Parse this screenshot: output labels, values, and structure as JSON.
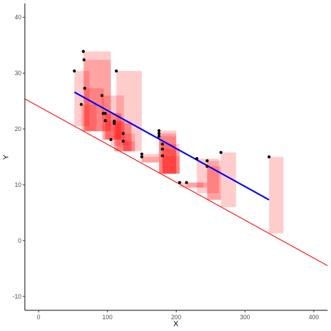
{
  "chart_data": {
    "type": "scatter",
    "xlabel": "X",
    "ylabel": "Y",
    "xlim": [
      -20,
      420
    ],
    "ylim": [
      -12.5,
      42.5
    ],
    "x_ticks": [
      0,
      100,
      200,
      300,
      400
    ],
    "y_ticks": [
      -10,
      0,
      10,
      20,
      30,
      40
    ],
    "x_tick_labels": [
      "0",
      "100",
      "200",
      "300",
      "400"
    ],
    "y_tick_labels": [
      "-10",
      "0",
      "10",
      "20",
      "30",
      "40"
    ],
    "grid": false,
    "points": [
      {
        "x": 52,
        "y": 30.4
      },
      {
        "x": 62,
        "y": 24.4
      },
      {
        "x": 65,
        "y": 33.9
      },
      {
        "x": 66,
        "y": 32.4
      },
      {
        "x": 67,
        "y": 27.3
      },
      {
        "x": 92,
        "y": 26.0
      },
      {
        "x": 94,
        "y": 22.8
      },
      {
        "x": 97,
        "y": 21.5
      },
      {
        "x": 97,
        "y": 22.8
      },
      {
        "x": 105,
        "y": 18.1
      },
      {
        "x": 110,
        "y": 21.4
      },
      {
        "x": 110,
        "y": 21.0
      },
      {
        "x": 113,
        "y": 30.4
      },
      {
        "x": 123,
        "y": 19.2
      },
      {
        "x": 123,
        "y": 17.8
      },
      {
        "x": 150,
        "y": 15.5
      },
      {
        "x": 150,
        "y": 15.0
      },
      {
        "x": 175,
        "y": 19.7
      },
      {
        "x": 175,
        "y": 19.2
      },
      {
        "x": 175,
        "y": 18.7
      },
      {
        "x": 180,
        "y": 17.3
      },
      {
        "x": 180,
        "y": 16.4
      },
      {
        "x": 180,
        "y": 15.2
      },
      {
        "x": 205,
        "y": 10.4
      },
      {
        "x": 215,
        "y": 10.4
      },
      {
        "x": 230,
        "y": 14.7
      },
      {
        "x": 245,
        "y": 14.3
      },
      {
        "x": 245,
        "y": 13.3
      },
      {
        "x": 265,
        "y": 15.8
      },
      {
        "x": 335,
        "y": 15.0
      }
    ],
    "rects": [
      {
        "xmin": 52,
        "xmax": 74,
        "ymin": 20.5,
        "ymax": 30.4
      },
      {
        "xmin": 62,
        "xmax": 84,
        "ymin": 19.6,
        "ymax": 24.4
      },
      {
        "xmin": 65,
        "xmax": 105,
        "ymin": 19.6,
        "ymax": 33.9
      },
      {
        "xmin": 66,
        "xmax": 105,
        "ymin": 19.6,
        "ymax": 32.4
      },
      {
        "xmin": 67,
        "xmax": 95,
        "ymin": 19.6,
        "ymax": 27.3
      },
      {
        "xmin": 92,
        "xmax": 124,
        "ymin": 18.1,
        "ymax": 26.0
      },
      {
        "xmin": 94,
        "xmax": 120,
        "ymin": 18.1,
        "ymax": 22.8
      },
      {
        "xmin": 97,
        "xmax": 125,
        "ymin": 18.1,
        "ymax": 21.5
      },
      {
        "xmin": 97,
        "xmax": 120,
        "ymin": 18.1,
        "ymax": 22.8
      },
      {
        "xmin": 105,
        "xmax": 130,
        "ymin": 17.0,
        "ymax": 18.1
      },
      {
        "xmin": 110,
        "xmax": 135,
        "ymin": 16.0,
        "ymax": 21.4
      },
      {
        "xmin": 110,
        "xmax": 135,
        "ymin": 16.0,
        "ymax": 21.0
      },
      {
        "xmin": 113,
        "xmax": 150,
        "ymin": 16.0,
        "ymax": 30.4
      },
      {
        "xmin": 123,
        "xmax": 140,
        "ymin": 16.0,
        "ymax": 19.2
      },
      {
        "xmin": 123,
        "xmax": 140,
        "ymin": 16.0,
        "ymax": 17.8
      },
      {
        "xmin": 150,
        "xmax": 175,
        "ymin": 14.0,
        "ymax": 15.5
      },
      {
        "xmin": 150,
        "xmax": 175,
        "ymin": 14.0,
        "ymax": 15.0
      },
      {
        "xmin": 175,
        "xmax": 200,
        "ymin": 12.0,
        "ymax": 19.7
      },
      {
        "xmin": 175,
        "xmax": 200,
        "ymin": 12.0,
        "ymax": 19.2
      },
      {
        "xmin": 175,
        "xmax": 200,
        "ymin": 12.0,
        "ymax": 18.7
      },
      {
        "xmin": 180,
        "xmax": 205,
        "ymin": 12.0,
        "ymax": 17.3
      },
      {
        "xmin": 180,
        "xmax": 205,
        "ymin": 12.0,
        "ymax": 16.4
      },
      {
        "xmin": 180,
        "xmax": 205,
        "ymin": 12.0,
        "ymax": 15.2
      },
      {
        "xmin": 205,
        "xmax": 240,
        "ymin": 9.5,
        "ymax": 10.4
      },
      {
        "xmin": 215,
        "xmax": 245,
        "ymin": 9.5,
        "ymax": 10.4
      },
      {
        "xmin": 230,
        "xmax": 262,
        "ymin": 8.5,
        "ymax": 14.7
      },
      {
        "xmin": 245,
        "xmax": 265,
        "ymin": 7.3,
        "ymax": 14.3
      },
      {
        "xmin": 245,
        "xmax": 265,
        "ymin": 7.3,
        "ymax": 13.3
      },
      {
        "xmin": 265,
        "xmax": 287,
        "ymin": 6.0,
        "ymax": 15.8
      },
      {
        "xmin": 335,
        "xmax": 356,
        "ymin": 1.3,
        "ymax": 15.0
      }
    ],
    "reference_line": {
      "color": "#ff0000",
      "x": [
        -20,
        420
      ],
      "y": [
        25.4,
        -4.5
      ]
    },
    "fit_line": {
      "color": "#0000ff",
      "x": [
        52,
        335
      ],
      "y": [
        26.6,
        7.3
      ]
    },
    "rect_color": "#ff0000",
    "rect_alpha": 0.2,
    "point_color": "#000000"
  }
}
